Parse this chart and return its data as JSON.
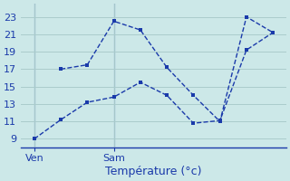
{
  "background_color": "#cce8e8",
  "grid_color": "#aacccc",
  "line_color": "#1a3aaa",
  "xlabel": "Température (°c)",
  "x_tick_positions": [
    0,
    3
  ],
  "x_tick_labels": [
    "Ven",
    "Sam"
  ],
  "ylim": [
    8.0,
    24.5
  ],
  "xlim": [
    -0.5,
    9.5
  ],
  "yticks": [
    9,
    11,
    13,
    15,
    17,
    19,
    21,
    23
  ],
  "line1_x": [
    0,
    1,
    2,
    3,
    4,
    5,
    6,
    7,
    8,
    9
  ],
  "line1_y": [
    9.0,
    11.2,
    13.2,
    13.8,
    15.5,
    14.0,
    10.8,
    11.1,
    19.2,
    21.2
  ],
  "line2_x": [
    1,
    2,
    3,
    4,
    5,
    6,
    7,
    8,
    9
  ],
  "line2_y": [
    17.0,
    17.5,
    22.5,
    21.5,
    17.2,
    14.0,
    11.0,
    23.0,
    21.2
  ],
  "vline_positions": [
    0,
    3
  ],
  "line_width": 1.0,
  "marker_size": 3.0,
  "tick_fontsize": 8,
  "xlabel_fontsize": 9
}
